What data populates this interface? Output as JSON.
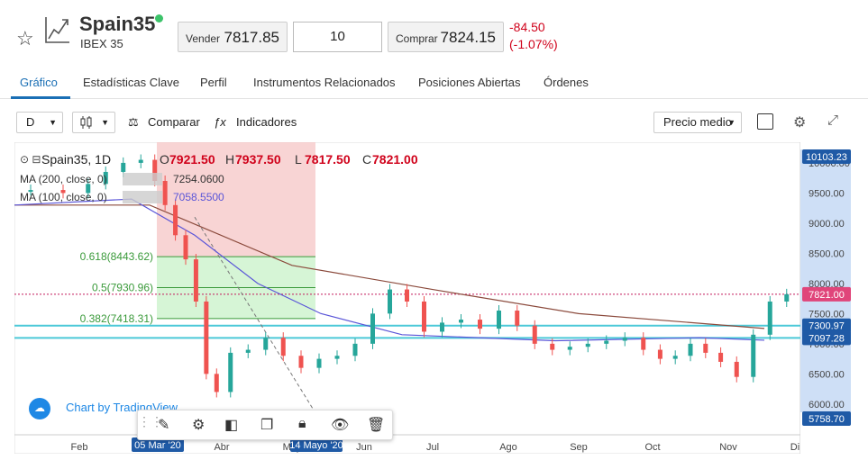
{
  "header": {
    "symbol": "Spain35",
    "subtitle": "IBEX 35",
    "sell_label": "Vender",
    "sell_price": "7817.85",
    "quantity": "10",
    "buy_label": "Comprar",
    "buy_price": "7824.15",
    "change": "-84.50",
    "change_pct": "(-1.07%)"
  },
  "tabs": [
    "Gráfico",
    "Estadísticas Clave",
    "Perfil",
    "Instrumentos Relacionados",
    "Posiciones Abiertas",
    "Órdenes"
  ],
  "toolbar": {
    "interval": "D",
    "compare_label": "Comparar",
    "indicators_label": "Indicadores",
    "price_type": "Precio medio"
  },
  "legend": {
    "title": "Spain35, 1D",
    "o_label": "O",
    "o": "7921.50",
    "h_label": "H",
    "h": "7937.50",
    "l_label": "L",
    "l": "7817.50",
    "c_label": "C",
    "c": "7821.00",
    "ma200_label": "MA (200, close, 0)",
    "ma200_value": "7254.0600",
    "ma100_label": "MA (100, close, 0)",
    "ma100_value": "7058.5500"
  },
  "fib": [
    {
      "label": "0.618(8443.62)",
      "level": 8443.62
    },
    {
      "label": "0.5(7930.96)",
      "level": 7930.96
    },
    {
      "label": "0.382(7418.31)",
      "level": 7418.31
    }
  ],
  "price_tags": [
    {
      "label": "10103.23",
      "value": 10103.23,
      "bg": "#1f5aa6"
    },
    {
      "label": "7821.00",
      "value": 7821.0,
      "bg": "#e0457a"
    },
    {
      "label": "7300.97",
      "value": 7300.97,
      "bg": "#1f5aa6"
    },
    {
      "label": "7097.28",
      "value": 7097.28,
      "bg": "#1f5aa6"
    },
    {
      "label": "5758.70",
      "value": 5758.7,
      "bg": "#1f5aa6"
    }
  ],
  "date_tags": [
    "05 Mar '20",
    "14 Mayo '20"
  ],
  "tv_label": "Chart by TradingView",
  "chart_data": {
    "type": "line",
    "title": "Spain35, 1D",
    "ylim": [
      5758.7,
      10103.23
    ],
    "y_ticks": [
      10000,
      9500,
      9000,
      8500,
      8000,
      7500,
      7000,
      6500,
      6000
    ],
    "x_ticks": [
      "Feb",
      "Mar",
      "Abr",
      "May",
      "Jun",
      "Jul",
      "Ago",
      "Sep",
      "Oct",
      "Nov",
      "Di"
    ],
    "series": [
      {
        "name": "Spain35",
        "x": [
          "Jan",
          "Jan",
          "Feb",
          "Feb",
          "Feb",
          "Feb",
          "Mar",
          "Mar",
          "Mar",
          "Mar",
          "Mar",
          "Mar",
          "Mar",
          "Apr",
          "Apr",
          "Apr",
          "Apr",
          "May",
          "May",
          "May",
          "May",
          "Jun",
          "Jun",
          "Jun",
          "Jun",
          "Jul",
          "Jul",
          "Jul",
          "Jul",
          "Aug",
          "Aug",
          "Aug",
          "Aug",
          "Sep",
          "Sep",
          "Sep",
          "Sep",
          "Oct",
          "Oct",
          "Oct",
          "Oct",
          "Oct",
          "Nov",
          "Nov",
          "Nov",
          "Nov"
        ],
        "values": [
          9550,
          9500,
          9650,
          9850,
          10000,
          10050,
          9700,
          9300,
          8800,
          8400,
          7700,
          6500,
          6200,
          6850,
          6900,
          7100,
          6800,
          6600,
          6750,
          6800,
          7000,
          7500,
          7900,
          7700,
          7200,
          7350,
          7400,
          7250,
          7550,
          7300,
          7000,
          6900,
          6950,
          7000,
          7050,
          7100,
          6900,
          6750,
          6800,
          7000,
          6850,
          6700,
          6450,
          7150,
          7700,
          7821
        ]
      },
      {
        "name": "MA (200, close, 0)",
        "x": [
          "Jan",
          "Mar",
          "May",
          "Jul",
          "Sep",
          "Nov"
        ],
        "values": [
          9300,
          9300,
          8300,
          7900,
          7500,
          7254.06
        ]
      },
      {
        "name": "MA (100, close, 0)",
        "x": [
          "Jan",
          "Mar",
          "Apr",
          "May",
          "Jun",
          "Jul",
          "Sep",
          "Oct",
          "Nov"
        ],
        "values": [
          9300,
          9400,
          8800,
          8000,
          7500,
          7150,
          7050,
          7100,
          7058.55
        ]
      }
    ]
  }
}
